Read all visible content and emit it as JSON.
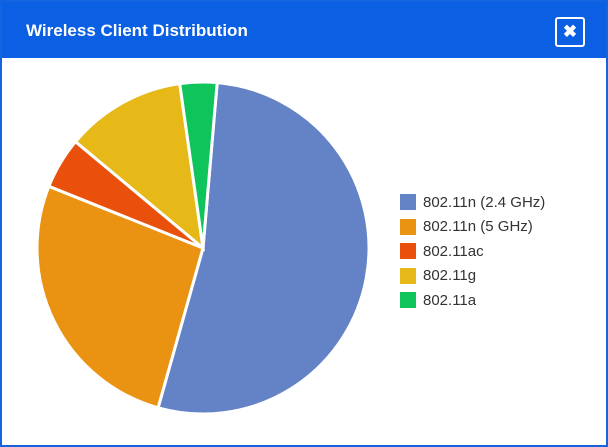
{
  "window": {
    "title": "Wireless Client Distribution",
    "close_label": "✖"
  },
  "chart_data": {
    "type": "pie",
    "title": "Wireless Client Distribution",
    "legend_position": "right",
    "start_angle_deg": 4.9,
    "slices": [
      {
        "label": "802.11n (2.4 GHz)",
        "value": 53.0,
        "color": "#6482c6"
      },
      {
        "label": "802.11n (5 GHz)",
        "value": 26.7,
        "color": "#ea9312"
      },
      {
        "label": "802.11ac",
        "value": 5.0,
        "color": "#e8500c"
      },
      {
        "label": "802.11g",
        "value": 11.7,
        "color": "#e6b818"
      },
      {
        "label": "802.11a",
        "value": 3.6,
        "color": "#10c45c"
      }
    ]
  }
}
